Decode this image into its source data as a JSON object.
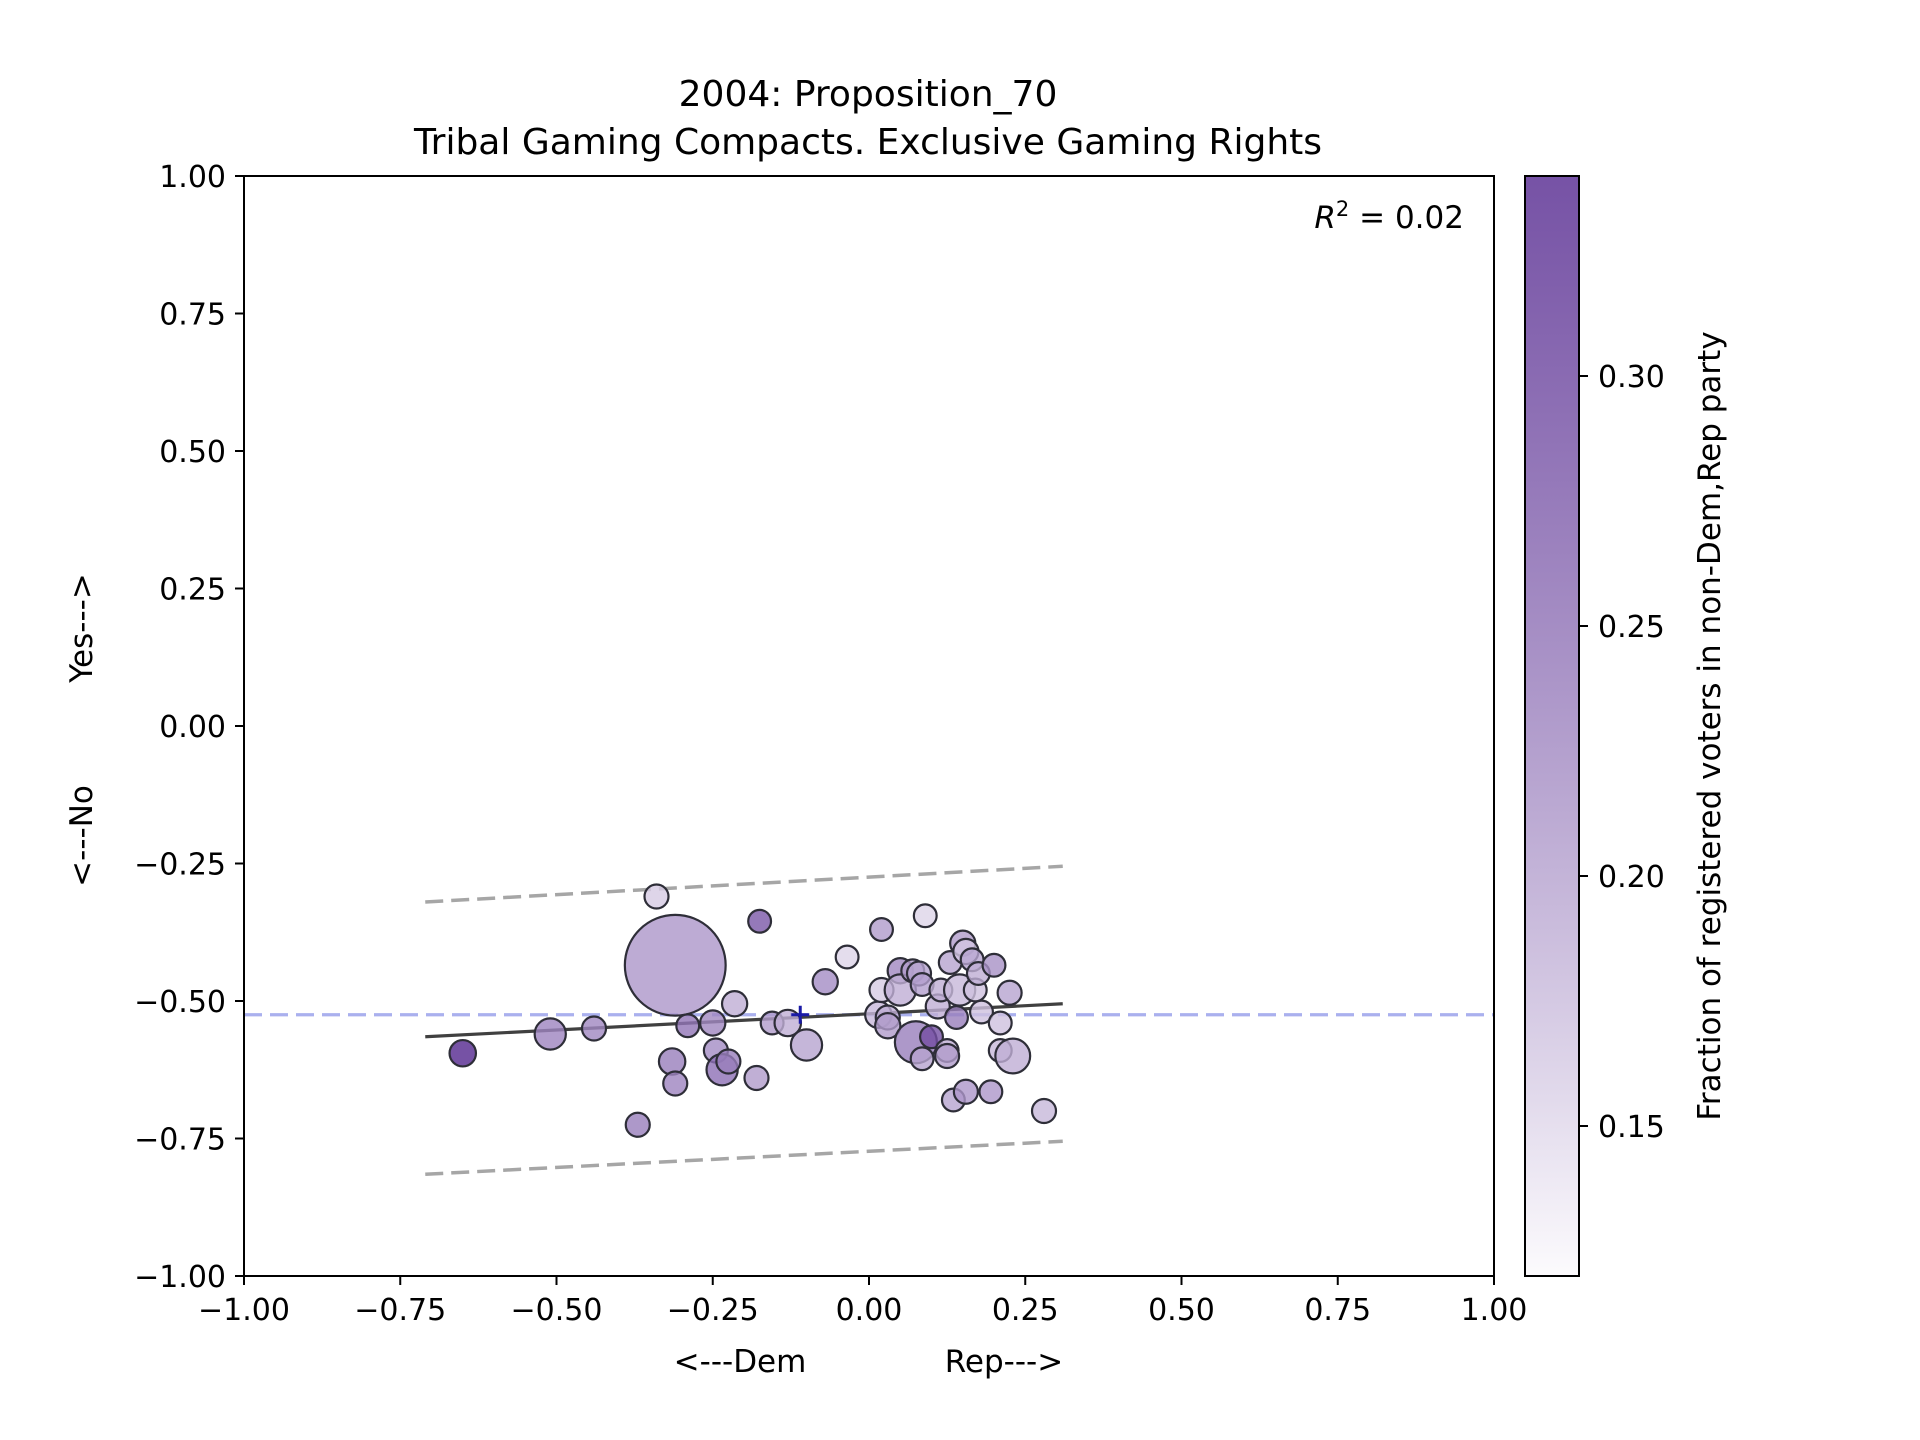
{
  "chart_data": {
    "type": "scatter",
    "title": "2004: Proposition_70",
    "subtitle": "Tribal Gaming Compacts. Exclusive Gaming Rights",
    "xlabel_left": "<---Dem",
    "xlabel_right": "Rep--->",
    "ylabel_bottom": "<---No",
    "ylabel_top": "Yes--->",
    "xlim": [
      -1.0,
      1.0
    ],
    "ylim": [
      -1.0,
      1.0
    ],
    "xticks": [
      "−1.00",
      "−0.75",
      "−0.50",
      "−0.25",
      "0.00",
      "0.25",
      "0.50",
      "0.75",
      "1.00"
    ],
    "yticks": [
      "−1.00",
      "−0.75",
      "−0.50",
      "−0.25",
      "0.00",
      "0.25",
      "0.50",
      "0.75",
      "1.00"
    ],
    "annotation": {
      "prefix": "R",
      "sup": "2",
      "suffix": " = 0.02"
    },
    "colorbar": {
      "label": "Fraction of registered voters in non-Dem,Rep party",
      "range": [
        0.12,
        0.34
      ],
      "ticks": [
        0.15,
        0.2,
        0.25,
        0.3
      ],
      "tick_labels": [
        "0.15",
        "0.20",
        "0.25",
        "0.30"
      ],
      "color_low": "#fcfbfd",
      "color_high": "#54278f"
    },
    "reference_line_y": -0.525,
    "mean_marker": {
      "x": -0.11,
      "y": -0.525
    },
    "fit_line": {
      "x": [
        -0.71,
        0.31
      ],
      "y": [
        -0.565,
        -0.505
      ]
    },
    "band_upper": {
      "x": [
        -0.71,
        0.31
      ],
      "y": [
        -0.32,
        -0.255
      ]
    },
    "band_lower": {
      "x": [
        -0.71,
        0.31
      ],
      "y": [
        -0.815,
        -0.755
      ]
    },
    "grid": false,
    "points": [
      {
        "x": -0.65,
        "y": -0.595,
        "s": 1.1,
        "c": 0.34
      },
      {
        "x": -0.51,
        "y": -0.56,
        "s": 1.3,
        "c": 0.245
      },
      {
        "x": -0.44,
        "y": -0.55,
        "s": 1.0,
        "c": 0.24
      },
      {
        "x": -0.37,
        "y": -0.725,
        "s": 1.0,
        "c": 0.25
      },
      {
        "x": -0.34,
        "y": -0.31,
        "s": 1.0,
        "c": 0.17
      },
      {
        "x": -0.31,
        "y": -0.435,
        "s": 4.2,
        "c": 0.225
      },
      {
        "x": -0.315,
        "y": -0.61,
        "s": 1.1,
        "c": 0.25
      },
      {
        "x": -0.31,
        "y": -0.65,
        "s": 1.0,
        "c": 0.245
      },
      {
        "x": -0.29,
        "y": -0.545,
        "s": 0.95,
        "c": 0.26
      },
      {
        "x": -0.25,
        "y": -0.54,
        "s": 1.05,
        "c": 0.24
      },
      {
        "x": -0.245,
        "y": -0.59,
        "s": 1.0,
        "c": 0.235
      },
      {
        "x": -0.235,
        "y": -0.625,
        "s": 1.3,
        "c": 0.265
      },
      {
        "x": -0.225,
        "y": -0.61,
        "s": 1.0,
        "c": 0.25
      },
      {
        "x": -0.215,
        "y": -0.505,
        "s": 1.05,
        "c": 0.2
      },
      {
        "x": -0.18,
        "y": -0.64,
        "s": 1.0,
        "c": 0.22
      },
      {
        "x": -0.175,
        "y": -0.355,
        "s": 0.95,
        "c": 0.29
      },
      {
        "x": -0.155,
        "y": -0.54,
        "s": 0.95,
        "c": 0.22
      },
      {
        "x": -0.13,
        "y": -0.54,
        "s": 1.1,
        "c": 0.2
      },
      {
        "x": -0.1,
        "y": -0.58,
        "s": 1.3,
        "c": 0.21
      },
      {
        "x": -0.07,
        "y": -0.465,
        "s": 1.05,
        "c": 0.235
      },
      {
        "x": -0.035,
        "y": -0.42,
        "s": 0.95,
        "c": 0.16
      },
      {
        "x": 0.015,
        "y": -0.525,
        "s": 1.1,
        "c": 0.19
      },
      {
        "x": 0.02,
        "y": -0.48,
        "s": 1.0,
        "c": 0.17
      },
      {
        "x": 0.02,
        "y": -0.37,
        "s": 0.95,
        "c": 0.22
      },
      {
        "x": 0.03,
        "y": -0.53,
        "s": 1.0,
        "c": 0.2
      },
      {
        "x": 0.03,
        "y": -0.545,
        "s": 1.05,
        "c": 0.22
      },
      {
        "x": 0.05,
        "y": -0.445,
        "s": 1.05,
        "c": 0.24
      },
      {
        "x": 0.05,
        "y": -0.48,
        "s": 1.3,
        "c": 0.2
      },
      {
        "x": 0.07,
        "y": -0.445,
        "s": 0.95,
        "c": 0.22
      },
      {
        "x": 0.075,
        "y": -0.575,
        "s": 1.75,
        "c": 0.25
      },
      {
        "x": 0.08,
        "y": -0.45,
        "s": 1.0,
        "c": 0.21
      },
      {
        "x": 0.085,
        "y": -0.47,
        "s": 0.95,
        "c": 0.215
      },
      {
        "x": 0.085,
        "y": -0.605,
        "s": 0.95,
        "c": 0.21
      },
      {
        "x": 0.09,
        "y": -0.345,
        "s": 0.95,
        "c": 0.16
      },
      {
        "x": 0.1,
        "y": -0.565,
        "s": 0.95,
        "c": 0.3
      },
      {
        "x": 0.11,
        "y": -0.51,
        "s": 1.0,
        "c": 0.2
      },
      {
        "x": 0.115,
        "y": -0.48,
        "s": 0.95,
        "c": 0.2
      },
      {
        "x": 0.125,
        "y": -0.59,
        "s": 0.95,
        "c": 0.2
      },
      {
        "x": 0.125,
        "y": -0.6,
        "s": 1.0,
        "c": 0.22
      },
      {
        "x": 0.13,
        "y": -0.43,
        "s": 0.95,
        "c": 0.21
      },
      {
        "x": 0.135,
        "y": -0.68,
        "s": 0.95,
        "c": 0.21
      },
      {
        "x": 0.14,
        "y": -0.53,
        "s": 0.95,
        "c": 0.25
      },
      {
        "x": 0.145,
        "y": -0.48,
        "s": 1.3,
        "c": 0.19
      },
      {
        "x": 0.15,
        "y": -0.395,
        "s": 1.05,
        "c": 0.22
      },
      {
        "x": 0.155,
        "y": -0.665,
        "s": 1.0,
        "c": 0.225
      },
      {
        "x": 0.155,
        "y": -0.41,
        "s": 1.05,
        "c": 0.175
      },
      {
        "x": 0.165,
        "y": -0.425,
        "s": 0.95,
        "c": 0.21
      },
      {
        "x": 0.17,
        "y": -0.48,
        "s": 0.95,
        "c": 0.18
      },
      {
        "x": 0.175,
        "y": -0.45,
        "s": 0.95,
        "c": 0.2
      },
      {
        "x": 0.18,
        "y": -0.52,
        "s": 0.95,
        "c": 0.18
      },
      {
        "x": 0.195,
        "y": -0.665,
        "s": 0.95,
        "c": 0.225
      },
      {
        "x": 0.2,
        "y": -0.435,
        "s": 0.95,
        "c": 0.23
      },
      {
        "x": 0.21,
        "y": -0.54,
        "s": 0.95,
        "c": 0.18
      },
      {
        "x": 0.21,
        "y": -0.59,
        "s": 0.95,
        "c": 0.19
      },
      {
        "x": 0.225,
        "y": -0.485,
        "s": 1.0,
        "c": 0.21
      },
      {
        "x": 0.23,
        "y": -0.6,
        "s": 1.45,
        "c": 0.2
      },
      {
        "x": 0.28,
        "y": -0.7,
        "s": 1.0,
        "c": 0.19
      }
    ]
  }
}
